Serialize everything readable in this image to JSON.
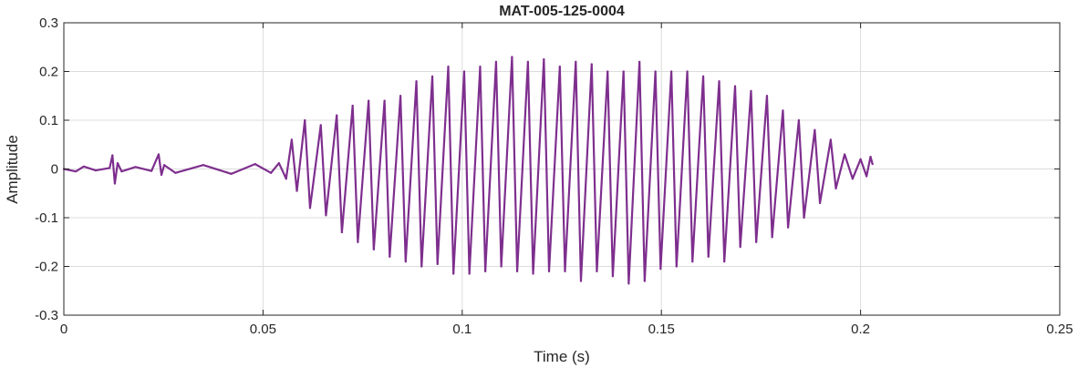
{
  "chart_data": {
    "type": "line",
    "title": "MAT-005-125-0004",
    "xlabel": "Time (s)",
    "ylabel": "Amplitude",
    "xlim": [
      0,
      0.25
    ],
    "ylim": [
      -0.3,
      0.3
    ],
    "grid": true,
    "legend": "none",
    "x_ticks": [
      {
        "value": 0,
        "label": "0"
      },
      {
        "value": 0.05,
        "label": "0.05"
      },
      {
        "value": 0.1,
        "label": "0.1"
      },
      {
        "value": 0.15,
        "label": "0.15"
      },
      {
        "value": 0.2,
        "label": "0.2"
      },
      {
        "value": 0.25,
        "label": "0.25"
      }
    ],
    "y_ticks": [
      {
        "value": 0.3,
        "label": "0.3"
      },
      {
        "value": 0.2,
        "label": "0.2"
      },
      {
        "value": 0.1,
        "label": "0.1"
      },
      {
        "value": 0,
        "label": "0"
      },
      {
        "value": -0.1,
        "label": "-0.1"
      },
      {
        "value": -0.2,
        "label": "-0.2"
      },
      {
        "value": -0.3,
        "label": "-0.3"
      }
    ],
    "series": [
      {
        "color": "#7E2F8E",
        "x": [
          0,
          0.003,
          0.005,
          0.008,
          0.0115,
          0.0122,
          0.0128,
          0.0135,
          0.0145,
          0.018,
          0.022,
          0.0238,
          0.0245,
          0.0252,
          0.028,
          0.035,
          0.042,
          0.048,
          0.052,
          0.054,
          0.0558,
          0.0572,
          0.0585,
          0.0605,
          0.0618,
          0.0645,
          0.0658,
          0.0685,
          0.0698,
          0.0725,
          0.0738,
          0.0765,
          0.0778,
          0.0805,
          0.0818,
          0.0845,
          0.0858,
          0.0885,
          0.0898,
          0.0925,
          0.0938,
          0.0965,
          0.0978,
          0.1005,
          0.1018,
          0.1045,
          0.1058,
          0.1085,
          0.1098,
          0.1125,
          0.1138,
          0.1165,
          0.1178,
          0.1205,
          0.1218,
          0.1245,
          0.1258,
          0.1285,
          0.1298,
          0.1325,
          0.1338,
          0.1365,
          0.1378,
          0.1405,
          0.1418,
          0.1445,
          0.1458,
          0.1485,
          0.1498,
          0.1525,
          0.1538,
          0.1565,
          0.1578,
          0.1605,
          0.1618,
          0.1645,
          0.1658,
          0.1685,
          0.1698,
          0.1725,
          0.1738,
          0.1765,
          0.1778,
          0.1805,
          0.1818,
          0.1845,
          0.1858,
          0.1885,
          0.1898,
          0.1925,
          0.1938,
          0.196,
          0.198,
          0.2,
          0.2015,
          0.2025,
          0.203
        ],
        "y": [
          0,
          -0.005,
          0.005,
          -0.003,
          0.002,
          0.028,
          -0.03,
          0.012,
          -0.005,
          0.004,
          -0.004,
          0.03,
          -0.012,
          0.008,
          -0.008,
          0.008,
          -0.01,
          0.01,
          -0.008,
          0.012,
          -0.02,
          0.06,
          -0.045,
          0.1,
          -0.08,
          0.09,
          -0.095,
          0.11,
          -0.13,
          0.13,
          -0.15,
          0.14,
          -0.165,
          0.14,
          -0.18,
          0.15,
          -0.19,
          0.18,
          -0.2,
          0.19,
          -0.195,
          0.21,
          -0.215,
          0.2,
          -0.215,
          0.21,
          -0.21,
          0.22,
          -0.2,
          0.23,
          -0.21,
          0.22,
          -0.215,
          0.225,
          -0.21,
          0.21,
          -0.21,
          0.22,
          -0.23,
          0.215,
          -0.21,
          0.2,
          -0.22,
          0.2,
          -0.235,
          0.22,
          -0.23,
          0.2,
          -0.205,
          0.2,
          -0.2,
          0.2,
          -0.19,
          0.19,
          -0.18,
          0.18,
          -0.19,
          0.17,
          -0.16,
          0.16,
          -0.15,
          0.15,
          -0.14,
          0.12,
          -0.12,
          0.1,
          -0.1,
          0.08,
          -0.07,
          0.06,
          -0.04,
          0.03,
          -0.02,
          0.02,
          -0.015,
          0.025,
          0.01
        ]
      }
    ]
  }
}
